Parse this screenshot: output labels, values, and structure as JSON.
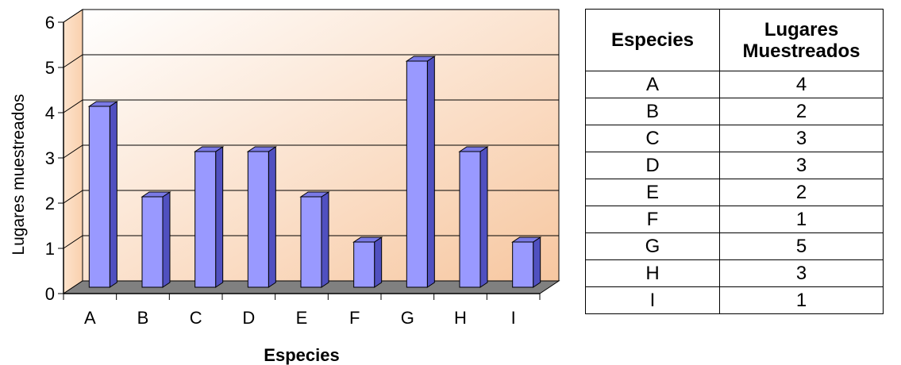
{
  "chart_data": {
    "type": "bar",
    "categories": [
      "A",
      "B",
      "C",
      "D",
      "E",
      "F",
      "G",
      "H",
      "I"
    ],
    "values": [
      4,
      2,
      3,
      3,
      2,
      1,
      5,
      3,
      1
    ],
    "xlabel": "Especies",
    "ylabel": "Lugares muestreados",
    "ylim": [
      0,
      6
    ],
    "yticks": [
      0,
      1,
      2,
      3,
      4,
      5,
      6
    ],
    "grid": true,
    "legend": "none",
    "style": "3d-column",
    "colors": {
      "bar_front": "#9999ff",
      "bar_side": "#5050c0",
      "bar_top": "#7a7ae6",
      "floor": "#808080",
      "wall_light": "#ffffff",
      "wall_dark": "#f7c7a0"
    }
  },
  "table": {
    "headers": [
      "Especies",
      "Lugares Muestreados"
    ],
    "header2_lines": [
      "Lugares",
      "Muestreados"
    ],
    "rows": [
      [
        "A",
        "4"
      ],
      [
        "B",
        "2"
      ],
      [
        "C",
        "3"
      ],
      [
        "D",
        "3"
      ],
      [
        "E",
        "2"
      ],
      [
        "F",
        "1"
      ],
      [
        "G",
        "5"
      ],
      [
        "H",
        "3"
      ],
      [
        "I",
        "1"
      ]
    ]
  }
}
